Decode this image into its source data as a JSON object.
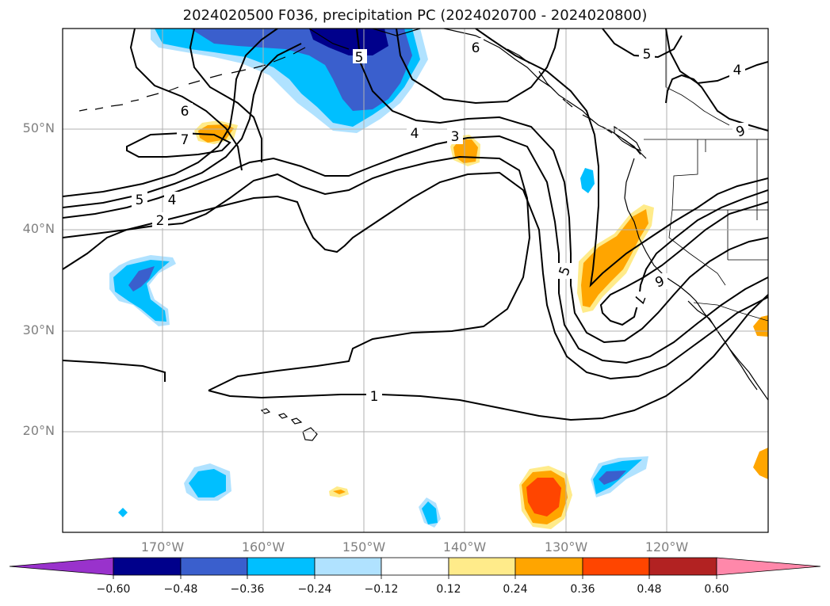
{
  "title": "2024020500 F036, precipitation PC (2024020700 - 2024020800)",
  "lat_labels": [
    "50°N",
    "40°N",
    "30°N",
    "20°N"
  ],
  "lon_labels": [
    "170°W",
    "160°W",
    "150°W",
    "140°W",
    "130°W",
    "120°W"
  ],
  "contour_labels": [
    "6",
    "5",
    "6",
    "5",
    "4",
    "7",
    "4",
    "3",
    "5",
    "4",
    "2",
    "5",
    "1",
    "7",
    "6",
    "6"
  ],
  "colorbar": {
    "ticks": [
      "−0.60",
      "−0.48",
      "−0.36",
      "−0.24",
      "−0.12",
      "0.12",
      "0.24",
      "0.36",
      "0.48",
      "0.60"
    ],
    "colors": [
      "#9932cc",
      "#00008b",
      "#3a5fcd",
      "#00bfff",
      "#b0e2ff",
      "#ffffff",
      "#ffeb8a",
      "#ffa500",
      "#ff4500",
      "#b22222",
      "#ff88aa"
    ]
  }
}
